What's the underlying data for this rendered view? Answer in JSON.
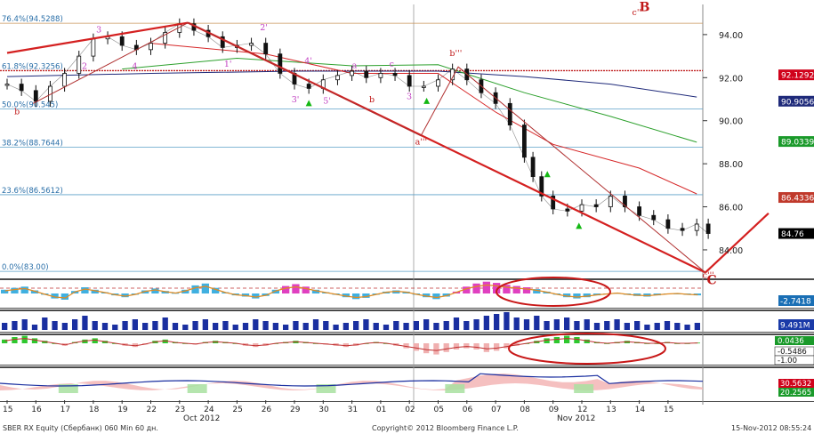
{
  "chart_data": [
    {
      "type": "line",
      "price_axis_ticks": [
        94.0,
        92.0,
        90.0,
        88.0,
        86.0,
        84.0
      ],
      "ylim": [
        82.8,
        95.4
      ],
      "x_labels": [
        "15",
        "16",
        "17",
        "18",
        "19",
        "22",
        "23",
        "24",
        "25",
        "26",
        "29",
        "30",
        "31",
        "01",
        "02",
        "05",
        "06",
        "07",
        "08",
        "09",
        "12",
        "13",
        "14",
        "15"
      ],
      "month_labels": [
        "Oct 2012",
        "Nov 2012"
      ],
      "fib_levels": [
        {
          "label": "76.4%(94.5288)",
          "value": 94.5288
        },
        {
          "label": "61.8%(92.3256)",
          "value": 92.3256
        },
        {
          "label": "50.0%(90.545)",
          "value": 90.545
        },
        {
          "label": "38.2%(88.7644)",
          "value": 88.7644
        },
        {
          "label": "23.6%(86.5612)",
          "value": 86.5612
        },
        {
          "label": "0.0%(83.00)",
          "value": 83.0
        }
      ],
      "price_badges": [
        {
          "label": "92.1292",
          "value": 92.1292,
          "color": "#d0021b"
        },
        {
          "label": "90.9056",
          "value": 90.9056,
          "color": "#1f2a7a"
        },
        {
          "label": "89.0339",
          "value": 89.0339,
          "color": "#1a9a2a"
        },
        {
          "label": "86.4336",
          "value": 86.4336,
          "color": "#c0392b"
        },
        {
          "label": "84.76",
          "value": 84.76,
          "color": "#000000"
        }
      ],
      "wave_labels": [
        {
          "label": "B",
          "x": 22.0,
          "y": 95.1
        },
        {
          "label": "C",
          "x": 24.35,
          "y": 82.4
        },
        {
          "label": "c''",
          "x": 21.75,
          "y": 94.9
        },
        {
          "label": "c'''",
          "x": 24.2,
          "y": 82.7
        },
        {
          "label": "b",
          "x": 0.25,
          "y": 90.3
        },
        {
          "label": "b'''",
          "x": 15.4,
          "y": 93.0
        },
        {
          "label": "a'''",
          "x": 14.2,
          "y": 88.9
        },
        {
          "label": "3'",
          "x": 9.9,
          "y": 90.85
        },
        {
          "label": "4'",
          "x": 10.35,
          "y": 92.65
        },
        {
          "label": "5'",
          "x": 11.0,
          "y": 90.8
        },
        {
          "label": "b",
          "x": 12.6,
          "y": 90.85
        },
        {
          "label": "a",
          "x": 12.0,
          "y": 92.45
        },
        {
          "label": "c",
          "x": 13.3,
          "y": 92.5
        },
        {
          "label": "3",
          "x": 13.9,
          "y": 91.0
        },
        {
          "label": "2'",
          "x": 8.8,
          "y": 94.2
        },
        {
          "label": "1'",
          "x": 7.55,
          "y": 92.5
        },
        {
          "label": "3",
          "x": 3.1,
          "y": 94.1
        },
        {
          "label": "4",
          "x": 4.35,
          "y": 92.4
        },
        {
          "label": "2",
          "x": 2.6,
          "y": 92.4
        }
      ],
      "trend_lines": [
        {
          "name": "up",
          "points": [
            [
              0.0,
              93.15
            ],
            [
              6.3,
              94.55
            ]
          ]
        },
        {
          "name": "down",
          "points": [
            [
              6.3,
              94.55
            ],
            [
              24.3,
              82.95
            ]
          ]
        },
        {
          "name": "projection",
          "points": [
            [
              24.3,
              82.95
            ],
            [
              26.5,
              85.7
            ]
          ]
        },
        {
          "name": "channel",
          "points": [
            [
              0.9,
              90.8
            ],
            [
              6.3,
              94.55
            ],
            [
              14.4,
              89.3
            ],
            [
              15.7,
              92.5
            ],
            [
              24.3,
              82.95
            ]
          ]
        }
      ],
      "moving_averages": [
        {
          "color": "#1f2a7a",
          "points": [
            [
              0,
              92.05
            ],
            [
              5,
              92.2
            ],
            [
              10,
              92.3
            ],
            [
              15,
              92.3
            ],
            [
              18,
              92.05
            ],
            [
              21,
              91.7
            ],
            [
              24,
              91.1
            ]
          ]
        },
        {
          "color": "#2ca02c",
          "points": [
            [
              4,
              92.4
            ],
            [
              8,
              92.9
            ],
            [
              12,
              92.55
            ],
            [
              15,
              92.6
            ],
            [
              18,
              91.3
            ],
            [
              21,
              90.2
            ],
            [
              24,
              89.0
            ]
          ]
        },
        {
          "color": "#d62728",
          "points": [
            [
              5,
              93.6
            ],
            [
              9,
              93.1
            ],
            [
              12,
              92.2
            ],
            [
              15,
              92.2
            ],
            [
              17,
              90.4
            ],
            [
              19,
              88.9
            ],
            [
              22,
              87.8
            ],
            [
              24,
              86.6
            ]
          ]
        }
      ],
      "price": [
        [
          0.0,
          91.7
        ],
        [
          0.5,
          91.4
        ],
        [
          1.0,
          90.9
        ],
        [
          1.5,
          91.6
        ],
        [
          2.0,
          92.2
        ],
        [
          2.5,
          93.0
        ],
        [
          3.0,
          93.8
        ],
        [
          3.5,
          93.9
        ],
        [
          4.0,
          93.5
        ],
        [
          4.5,
          93.3
        ],
        [
          5.0,
          93.6
        ],
        [
          5.5,
          94.1
        ],
        [
          6.0,
          94.5
        ],
        [
          6.5,
          94.2
        ],
        [
          7.0,
          93.9
        ],
        [
          7.5,
          93.4
        ],
        [
          8.0,
          93.5
        ],
        [
          8.5,
          93.6
        ],
        [
          9.0,
          93.1
        ],
        [
          9.5,
          92.2
        ],
        [
          10.0,
          91.7
        ],
        [
          10.5,
          91.5
        ],
        [
          11.0,
          91.9
        ],
        [
          11.5,
          92.1
        ],
        [
          12.0,
          92.3
        ],
        [
          12.5,
          92.0
        ],
        [
          13.0,
          92.2
        ],
        [
          13.5,
          92.1
        ],
        [
          14.0,
          91.6
        ],
        [
          14.5,
          91.6
        ],
        [
          15.0,
          91.9
        ],
        [
          15.5,
          92.4
        ],
        [
          16.0,
          91.9
        ],
        [
          16.5,
          91.3
        ],
        [
          17.0,
          90.8
        ],
        [
          17.5,
          89.8
        ],
        [
          18.0,
          88.3
        ],
        [
          18.3,
          87.4
        ],
        [
          18.6,
          86.5
        ],
        [
          19.0,
          85.9
        ],
        [
          19.5,
          85.8
        ],
        [
          20.0,
          86.1
        ],
        [
          20.5,
          86.0
        ],
        [
          21.0,
          86.5
        ],
        [
          21.5,
          86.0
        ],
        [
          22.0,
          85.6
        ],
        [
          22.5,
          85.4
        ],
        [
          23.0,
          85.0
        ],
        [
          23.5,
          84.9
        ],
        [
          24.0,
          85.2
        ],
        [
          24.4,
          84.76
        ]
      ],
      "buy_markers": [
        [
          10.5,
          90.8
        ],
        [
          14.6,
          90.9
        ],
        [
          18.8,
          87.5
        ],
        [
          19.9,
          85.1
        ]
      ]
    },
    {
      "type": "bar",
      "name": "oscillator",
      "badge": {
        "label": "-2.7418",
        "color": "#1a6fb5"
      },
      "values": [
        0.6,
        0.9,
        1.1,
        0.5,
        -0.2,
        -0.8,
        -1.0,
        0.4,
        1.0,
        0.6,
        0.2,
        -0.3,
        -0.6,
        -0.2,
        0.5,
        0.8,
        0.4,
        0.1,
        0.6,
        1.3,
        1.6,
        0.9,
        0.2,
        -0.3,
        -0.5,
        -0.8,
        -0.4,
        0.6,
        1.2,
        1.5,
        1.1,
        0.6,
        0.2,
        -0.2,
        -0.6,
        -0.9,
        -0.7,
        -0.2,
        0.3,
        0.5,
        0.3,
        -0.2,
        -0.6,
        -0.9,
        -0.5,
        0.3,
        1.1,
        1.6,
        1.9,
        1.7,
        1.4,
        1.2,
        1.0,
        0.7,
        0.3,
        -0.2,
        -0.6,
        -0.8,
        -0.6,
        -0.3,
        -0.1,
        0.1,
        -0.2,
        -0.4,
        -0.5,
        -0.3,
        -0.1,
        0.0,
        -0.2,
        -0.3
      ]
    },
    {
      "type": "bar",
      "name": "volume",
      "badge": {
        "label": "9.491M",
        "color": "#1a3aa8"
      },
      "values": [
        0.4,
        0.5,
        0.6,
        0.3,
        0.7,
        0.5,
        0.4,
        0.6,
        0.8,
        0.5,
        0.4,
        0.3,
        0.5,
        0.6,
        0.4,
        0.5,
        0.7,
        0.4,
        0.3,
        0.5,
        0.6,
        0.4,
        0.5,
        0.3,
        0.4,
        0.6,
        0.5,
        0.4,
        0.3,
        0.5,
        0.4,
        0.6,
        0.5,
        0.3,
        0.4,
        0.5,
        0.6,
        0.4,
        0.3,
        0.5,
        0.4,
        0.5,
        0.6,
        0.4,
        0.5,
        0.7,
        0.5,
        0.6,
        0.8,
        0.9,
        1.0,
        0.7,
        0.6,
        0.8,
        0.5,
        0.6,
        0.7,
        0.5,
        0.6,
        0.4,
        0.5,
        0.6,
        0.4,
        0.5,
        0.3,
        0.4,
        0.5,
        0.4,
        0.3,
        0.4
      ]
    },
    {
      "type": "bar",
      "name": "macd",
      "badges": [
        {
          "label": "0.0436",
          "color": "#1a9a2a"
        },
        {
          "label": "-0.5486",
          "color": "#ffffff"
        },
        {
          "label": "-1.00",
          "color": "#ffffff"
        }
      ],
      "values": [
        0.3,
        0.5,
        0.6,
        0.4,
        0.2,
        0.0,
        -0.2,
        0.1,
        0.3,
        0.4,
        0.2,
        0.0,
        -0.2,
        -0.3,
        -0.1,
        0.2,
        0.3,
        0.1,
        0.0,
        -0.1,
        0.1,
        0.2,
        0.1,
        0.0,
        -0.2,
        -0.3,
        -0.2,
        0.0,
        0.1,
        0.2,
        0.1,
        0.0,
        -0.1,
        -0.2,
        -0.3,
        -0.2,
        0.0,
        0.1,
        0.0,
        -0.2,
        -0.4,
        -0.6,
        -0.8,
        -0.9,
        -0.7,
        -0.5,
        -0.4,
        -0.5,
        -0.7,
        -0.6,
        -0.4,
        -0.2,
        0.0,
        0.2,
        0.4,
        0.5,
        0.6,
        0.5,
        0.3,
        0.1,
        0.0,
        0.1,
        0.2,
        0.1,
        0.0,
        0.0,
        0.1,
        0.0,
        0.0,
        0.05
      ]
    },
    {
      "type": "area",
      "name": "directional",
      "badges": [
        {
          "label": "30.5632",
          "color": "#d0021b"
        },
        {
          "label": "20.2565",
          "color": "#1a9a2a"
        }
      ]
    }
  ],
  "footer": {
    "left": "SBER RX Equity (Сбербанк) 060 Min 60 дн.",
    "center": "Copyright© 2012 Bloomberg Finance L.P.",
    "right": "15-Nov-2012 08:55:24"
  }
}
